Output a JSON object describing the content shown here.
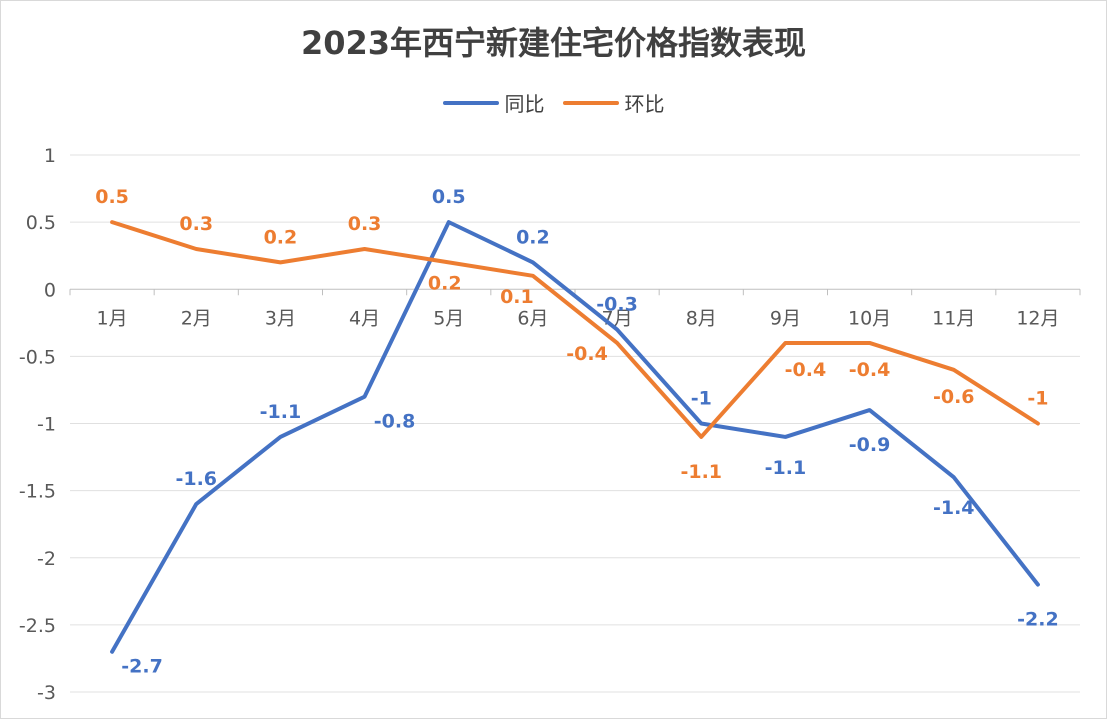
{
  "chart_data": {
    "type": "line",
    "title": "2023年西宁新建住宅价格指数表现",
    "categories": [
      "1月",
      "2月",
      "3月",
      "4月",
      "5月",
      "6月",
      "7月",
      "8月",
      "9月",
      "10月",
      "11月",
      "12月"
    ],
    "ylim": [
      -3,
      1
    ],
    "yticks": [
      1,
      0.5,
      0,
      -0.5,
      -1,
      -1.5,
      -2,
      -2.5,
      -3
    ],
    "ytick_labels": [
      "1",
      "0.5",
      "0",
      "-0.5",
      "-1",
      "-1.5",
      "-2",
      "-2.5",
      "-3"
    ],
    "grid": true,
    "legend_position": "top-center",
    "series": [
      {
        "name": "同比",
        "color": "#4472c4",
        "values": [
          -2.7,
          -1.6,
          -1.1,
          -0.8,
          0.5,
          0.2,
          -0.3,
          -1,
          -1.1,
          -0.9,
          -1.4,
          -2.2
        ],
        "labels": [
          "-2.7",
          "-1.6",
          "-1.1",
          "-0.8",
          "0.5",
          "0.2",
          "-0.3",
          "-1",
          "-1.1",
          "-0.9",
          "-1.4",
          "-2.2"
        ]
      },
      {
        "name": "环比",
        "color": "#ed7d31",
        "values": [
          0.5,
          0.3,
          0.2,
          0.3,
          0.2,
          0.1,
          -0.4,
          -1.1,
          -0.4,
          -0.4,
          -0.6,
          -1
        ],
        "labels": [
          "0.5",
          "0.3",
          "0.2",
          "0.3",
          "0.2",
          "0.1",
          "-0.4",
          "-1.1",
          "-0.4",
          "-0.4",
          "-0.6",
          "-1"
        ]
      }
    ]
  }
}
